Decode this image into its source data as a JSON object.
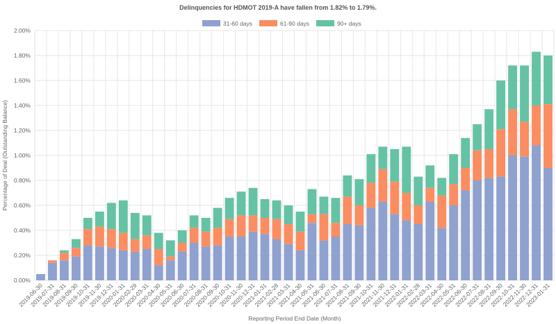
{
  "chart_data": {
    "type": "bar",
    "stacked": true,
    "title": "Delinquencies for HDMOT 2019-A have fallen from 1.82% to 1.79%.",
    "xlabel": "Reporting Period End Date (Month)",
    "ylabel": "Percentage of Deal (Outstanding Balance)",
    "ylim": [
      0,
      2.0
    ],
    "yticks": [
      "0.00%",
      "0.20%",
      "0.40%",
      "0.60%",
      "0.80%",
      "1.00%",
      "1.20%",
      "1.40%",
      "1.60%",
      "1.80%",
      "2.00%"
    ],
    "grid": true,
    "legend_position": "top-center",
    "categories": [
      "2019-06-30",
      "2019-07-31",
      "2019-08-31",
      "2019-09-30",
      "2019-10-31",
      "2019-11-30",
      "2019-12-31",
      "2020-01-31",
      "2020-02-29",
      "2020-03-31",
      "2020-04-30",
      "2020-05-31",
      "2020-06-30",
      "2020-07-31",
      "2020-08-31",
      "2020-09-30",
      "2020-10-31",
      "2020-11-30",
      "2020-12-31",
      "2021-01-31",
      "2021-02-28",
      "2021-03-31",
      "2021-04-30",
      "2021-05-31",
      "2021-06-30",
      "2021-07-31",
      "2021-08-31",
      "2021-09-30",
      "2021-10-31",
      "2021-11-30",
      "2021-12-31",
      "2022-01-31",
      "2022-02-28",
      "2022-03-31",
      "2022-04-30",
      "2022-05-31",
      "2022-06-30",
      "2022-07-31",
      "2022-08-31",
      "2022-09-30",
      "2022-10-31",
      "2022-11-30",
      "2022-12-31",
      "2023-01-31"
    ],
    "series": [
      {
        "name": "31-60 days",
        "color": "#8fa1cf",
        "values": [
          0.05,
          0.14,
          0.16,
          0.19,
          0.28,
          0.27,
          0.26,
          0.24,
          0.23,
          0.25,
          0.12,
          0.16,
          0.23,
          0.3,
          0.27,
          0.28,
          0.35,
          0.35,
          0.39,
          0.37,
          0.33,
          0.29,
          0.24,
          0.46,
          0.32,
          0.35,
          0.45,
          0.44,
          0.58,
          0.63,
          0.53,
          0.48,
          0.45,
          0.63,
          0.42,
          0.6,
          0.72,
          0.8,
          0.82,
          0.83,
          1.0,
          0.99,
          1.08,
          0.9
        ]
      },
      {
        "name": "61-90 days",
        "color": "#fb8d62",
        "values": [
          0.0,
          0.02,
          0.06,
          0.07,
          0.13,
          0.16,
          0.15,
          0.14,
          0.1,
          0.11,
          0.13,
          0.03,
          0.07,
          0.12,
          0.12,
          0.14,
          0.14,
          0.17,
          0.13,
          0.13,
          0.16,
          0.16,
          0.15,
          0.07,
          0.21,
          0.11,
          0.22,
          0.16,
          0.2,
          0.26,
          0.26,
          0.22,
          0.15,
          0.11,
          0.26,
          0.17,
          0.18,
          0.24,
          0.23,
          0.38,
          0.37,
          0.28,
          0.32,
          0.51
        ]
      },
      {
        "name": "90+ days",
        "color": "#66c2a5",
        "values": [
          0.0,
          0.0,
          0.02,
          0.07,
          0.09,
          0.12,
          0.21,
          0.26,
          0.21,
          0.16,
          0.13,
          0.13,
          0.1,
          0.1,
          0.11,
          0.16,
          0.17,
          0.19,
          0.22,
          0.15,
          0.15,
          0.15,
          0.16,
          0.2,
          0.14,
          0.2,
          0.17,
          0.21,
          0.23,
          0.18,
          0.26,
          0.37,
          0.23,
          0.18,
          0.14,
          0.24,
          0.24,
          0.21,
          0.32,
          0.39,
          0.35,
          0.45,
          0.43,
          0.39
        ]
      }
    ]
  }
}
